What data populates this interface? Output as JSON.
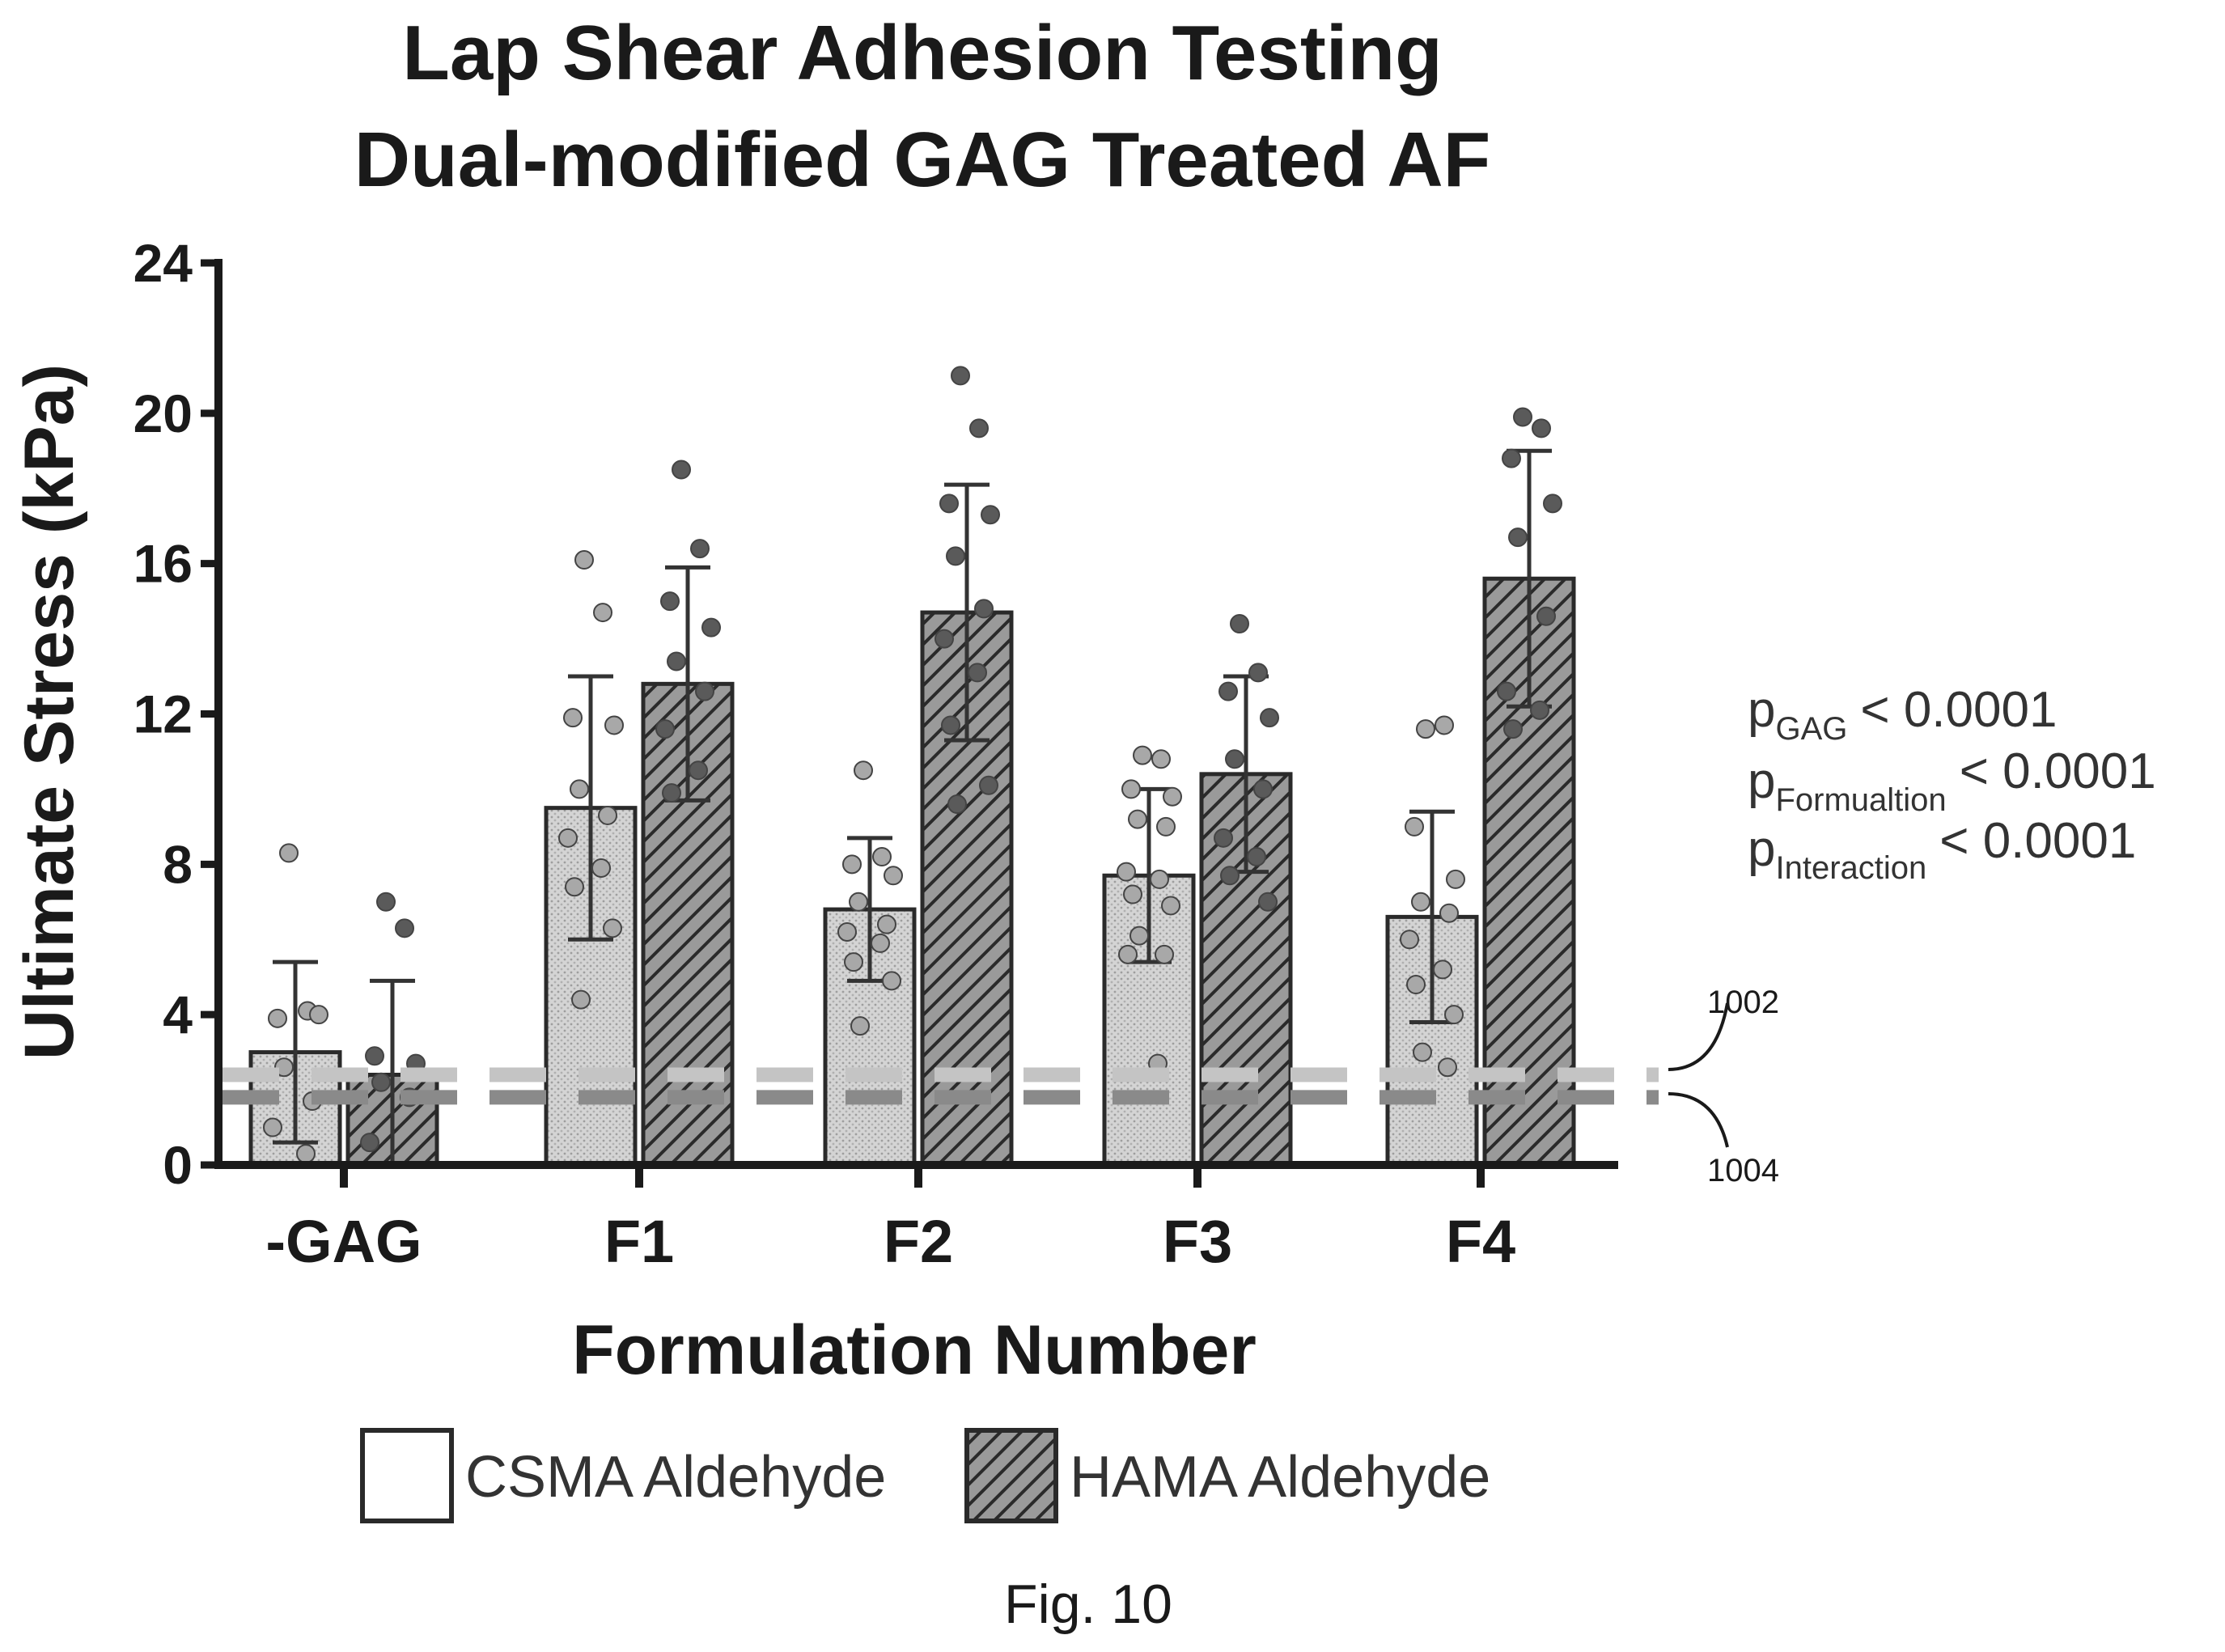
{
  "chart_data": {
    "type": "bar",
    "title": [
      "Lap Shear Adhesion Testing",
      "Dual-modified GAG Treated AF"
    ],
    "xlabel": "Formulation Number",
    "ylabel": "Ultimate Stress (kPa)",
    "ylim": [
      0,
      24
    ],
    "yticks": [
      "0",
      "4",
      "8",
      "12",
      "16",
      "20",
      "24"
    ],
    "categories": [
      "-GAG",
      "F1",
      "F2",
      "F3",
      "F4"
    ],
    "series": [
      {
        "name": "CSMA Aldehyde",
        "fill": "#cfcfcf",
        "values": [
          3.0,
          9.5,
          6.8,
          7.7,
          6.6
        ],
        "sd": [
          2.4,
          3.5,
          1.9,
          2.3,
          2.8
        ],
        "points": [
          [
            8.3,
            4.1,
            3.9,
            4.0,
            2.6,
            1.7,
            1.0,
            0.3
          ],
          [
            16.1,
            14.7,
            11.9,
            11.7,
            10.0,
            9.3,
            8.7,
            7.9,
            7.4,
            6.3,
            4.4
          ],
          [
            10.5,
            8.2,
            8.0,
            7.7,
            7.0,
            6.4,
            6.2,
            5.9,
            5.4,
            4.9,
            3.7
          ],
          [
            10.9,
            10.8,
            10.0,
            9.8,
            9.2,
            9.0,
            7.8,
            7.6,
            7.2,
            6.9,
            6.1,
            5.6,
            5.6,
            2.7
          ],
          [
            11.6,
            11.7,
            9.0,
            7.6,
            7.0,
            6.7,
            6.0,
            5.2,
            4.8,
            4.0,
            3.0,
            2.6
          ]
        ]
      },
      {
        "name": "HAMA Aldehyde",
        "fill": "#777777",
        "values": [
          2.4,
          12.8,
          14.7,
          10.4,
          15.6
        ],
        "sd": [
          2.5,
          3.1,
          3.4,
          2.6,
          3.4
        ],
        "points": [
          [
            7.0,
            6.3,
            2.9,
            2.7,
            2.2,
            1.8,
            0.6
          ],
          [
            18.5,
            16.4,
            15.0,
            14.3,
            13.4,
            12.6,
            11.6,
            10.5,
            9.9
          ],
          [
            21.0,
            19.6,
            17.6,
            17.3,
            16.2,
            14.8,
            14.0,
            13.1,
            11.7,
            10.1,
            9.6
          ],
          [
            14.4,
            13.1,
            12.6,
            11.9,
            10.8,
            10.0,
            8.7,
            8.2,
            7.7,
            7.0
          ],
          [
            19.9,
            19.6,
            18.8,
            17.6,
            16.7,
            14.6,
            12.6,
            12.1,
            11.6
          ]
        ]
      }
    ],
    "reference_lines": [
      {
        "label": "1002",
        "value": 2.4,
        "color": "#c4c4c4"
      },
      {
        "label": "1004",
        "value": 1.8,
        "color": "#8a8a8a"
      }
    ],
    "stats": [
      {
        "p": "p",
        "sub": "GAG",
        "text": "< 0.0001"
      },
      {
        "p": "p",
        "sub": "Formualtion",
        "text": "< 0.0001"
      },
      {
        "p": "p",
        "sub": "Interaction",
        "text": "< 0.0001"
      }
    ],
    "legend": [
      "CSMA Aldehyde",
      "HAMA Aldehyde"
    ],
    "legend_position": "bottom",
    "grid": false
  },
  "figure_label": "Fig. 10"
}
